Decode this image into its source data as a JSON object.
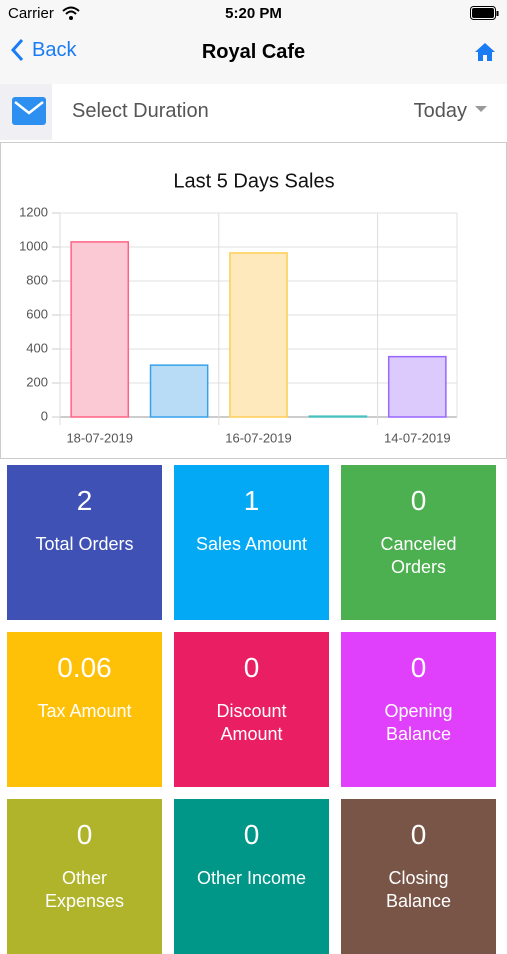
{
  "status_bar": {
    "carrier": "Carrier",
    "time": "5:20 PM"
  },
  "nav": {
    "back": "Back",
    "title": "Royal Cafe"
  },
  "filter": {
    "label": "Select Duration",
    "value": "Today"
  },
  "chart_data": {
    "type": "bar",
    "title": "Last 5 Days Sales",
    "categories": [
      "18-07-2019",
      null,
      "16-07-2019",
      null,
      "14-07-2019"
    ],
    "values": [
      1030,
      305,
      965,
      5,
      355
    ],
    "colors": [
      "#fbc9d4",
      "#b9dcf6",
      "#fde9bb",
      "#c8ecec",
      "#dccafd"
    ],
    "border_colors": [
      "#ff6384",
      "#36a2eb",
      "#ffce56",
      "#4bc0c0",
      "#9966ff"
    ],
    "ylim": [
      0,
      1200
    ],
    "yticks": [
      0,
      200,
      400,
      600,
      800,
      1000,
      1200
    ],
    "grid": true
  },
  "tiles": [
    {
      "value": 2,
      "label": "Total Orders",
      "color": "#3f51b5"
    },
    {
      "value": 1,
      "label": "Sales Amount",
      "color": "#03a9f4"
    },
    {
      "value": 0,
      "label": "Canceled Orders",
      "color": "#4caf50"
    },
    {
      "value": 0.06,
      "label": "Tax Amount",
      "color": "#ffc107"
    },
    {
      "value": 0,
      "label": "Discount Amount",
      "color": "#e91e63"
    },
    {
      "value": 0,
      "label": "Opening Balance",
      "color": "#e040fb"
    },
    {
      "value": 0,
      "label": "Other Expenses",
      "color": "#afb42b"
    },
    {
      "value": 0,
      "label": "Other Income",
      "color": "#009688"
    },
    {
      "value": 0,
      "label": "Closing Balance",
      "color": "#795548"
    }
  ]
}
